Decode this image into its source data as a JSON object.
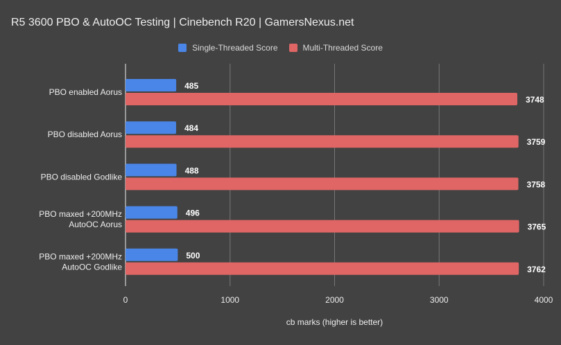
{
  "chart_data": {
    "type": "bar",
    "orientation": "horizontal",
    "title": "R5 3600 PBO & AutoOC Testing | Cinebench R20 | GamersNexus.net",
    "xlabel": "cb marks (higher is better)",
    "ylabel": "",
    "xlim": [
      0,
      4000
    ],
    "xticks": [
      "0",
      "1000",
      "2000",
      "3000",
      "4000"
    ],
    "grid": true,
    "legend_position": "top",
    "categories": [
      [
        "PBO enabled Aorus"
      ],
      [
        "PBO disabled Aorus"
      ],
      [
        "PBO disabled Godlike"
      ],
      [
        "PBO maxed +200MHz",
        "AutoOC Aorus"
      ],
      [
        "PBO maxed +200MHz",
        "AutoOC Godlike"
      ]
    ],
    "series": [
      {
        "name": "Single-Threaded Score",
        "color": "#4a86e8",
        "values": [
          485,
          484,
          488,
          496,
          500
        ]
      },
      {
        "name": "Multi-Threaded Score",
        "color": "#e06666",
        "values": [
          3748,
          3759,
          3758,
          3765,
          3762
        ]
      }
    ]
  }
}
